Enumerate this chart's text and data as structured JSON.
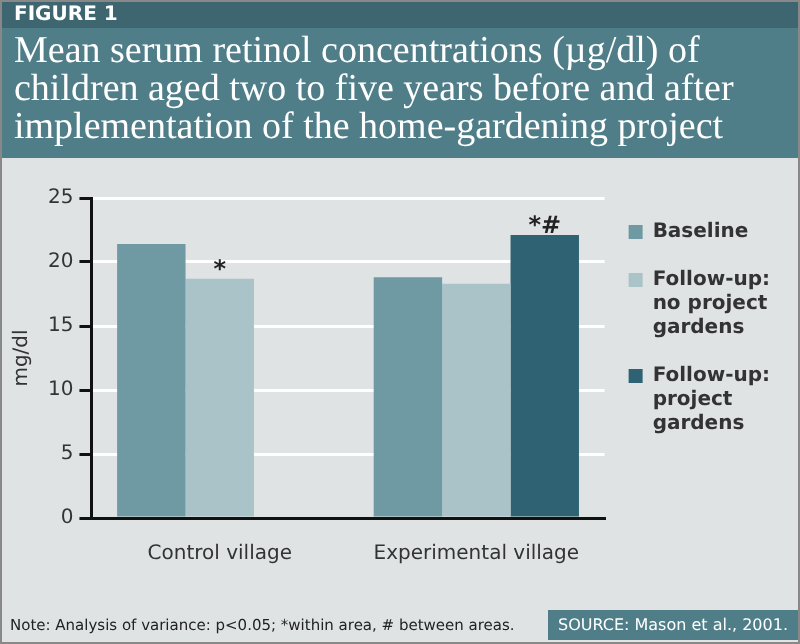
{
  "chart_data": {
    "type": "bar",
    "title": "Mean serum retinol concentrations (µg/dl) of children aged two to five years before and after implementation of the home-gardening project",
    "ylabel": "mg/dl",
    "categories": [
      "Control village",
      "Experimental village"
    ],
    "series": [
      {
        "name": "Baseline",
        "color": "#6f9aa3",
        "values": [
          21.4,
          18.8
        ]
      },
      {
        "name": "Follow-up: no project gardens",
        "color": "#a9c3c8",
        "values": [
          18.7,
          18.3
        ]
      },
      {
        "name": "Follow-up: project gardens",
        "color": "#2f6373",
        "values": [
          null,
          22.1
        ]
      }
    ],
    "ylim": [
      0,
      25
    ],
    "yticks": [
      0,
      5,
      10,
      15,
      20,
      25
    ],
    "grid": "y",
    "legend": "top right",
    "annotations": [
      "FIGURE 1",
      {
        "text": "*",
        "x": "Control village",
        "y": 18.7
      },
      "*#",
      "Note: Analysis of variance: p<0.05; *within area, # between areas.",
      "SOURCE: Mason et al., 2001."
    ]
  }
}
